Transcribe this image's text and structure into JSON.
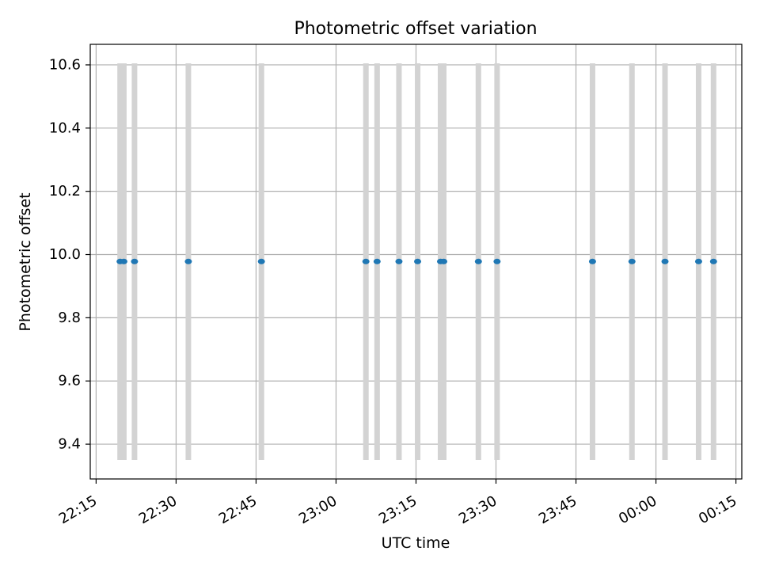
{
  "chart_data": {
    "type": "scatter",
    "title": "Photometric offset variation",
    "xlabel": "UTC time",
    "ylabel": "Photometric offset",
    "x_tick_labels": [
      "22:15",
      "22:30",
      "22:45",
      "23:00",
      "23:15",
      "23:30",
      "23:45",
      "00:00",
      "00:15"
    ],
    "x_tick_minutes": [
      0,
      15,
      30,
      45,
      60,
      75,
      90,
      105,
      120
    ],
    "xlim_minutes": [
      -1.1,
      121.1
    ],
    "y_ticks": [
      9.4,
      9.6,
      9.8,
      10.0,
      10.2,
      10.4,
      10.6
    ],
    "y_tick_labels": [
      "9.4",
      "9.6",
      "9.8",
      "10.0",
      "10.2",
      "10.4",
      "10.6"
    ],
    "ylim": [
      9.29,
      10.665
    ],
    "grid": true,
    "point_color": "#1f77b4",
    "errorbar_color": "#d3d3d3",
    "points": [
      {
        "t": 4.5,
        "y": 9.978,
        "err_low": 9.35,
        "err_high": 10.605
      },
      {
        "t": 5.2,
        "y": 9.978,
        "err_low": 9.35,
        "err_high": 10.605
      },
      {
        "t": 7.2,
        "y": 9.978,
        "err_low": 9.35,
        "err_high": 10.605
      },
      {
        "t": 17.3,
        "y": 9.978,
        "err_low": 9.35,
        "err_high": 10.605
      },
      {
        "t": 31.0,
        "y": 9.978,
        "err_low": 9.35,
        "err_high": 10.605
      },
      {
        "t": 50.6,
        "y": 9.978,
        "err_low": 9.35,
        "err_high": 10.605
      },
      {
        "t": 52.7,
        "y": 9.978,
        "err_low": 9.35,
        "err_high": 10.605
      },
      {
        "t": 56.8,
        "y": 9.978,
        "err_low": 9.35,
        "err_high": 10.605
      },
      {
        "t": 60.3,
        "y": 9.978,
        "err_low": 9.35,
        "err_high": 10.605
      },
      {
        "t": 64.6,
        "y": 9.978,
        "err_low": 9.35,
        "err_high": 10.605
      },
      {
        "t": 65.2,
        "y": 9.978,
        "err_low": 9.35,
        "err_high": 10.605
      },
      {
        "t": 71.7,
        "y": 9.978,
        "err_low": 9.35,
        "err_high": 10.605
      },
      {
        "t": 75.2,
        "y": 9.978,
        "err_low": 9.35,
        "err_high": 10.605
      },
      {
        "t": 93.1,
        "y": 9.978,
        "err_low": 9.35,
        "err_high": 10.605
      },
      {
        "t": 100.5,
        "y": 9.978,
        "err_low": 9.35,
        "err_high": 10.605
      },
      {
        "t": 106.7,
        "y": 9.978,
        "err_low": 9.35,
        "err_high": 10.605
      },
      {
        "t": 113.0,
        "y": 9.978,
        "err_low": 9.35,
        "err_high": 10.605
      },
      {
        "t": 115.8,
        "y": 9.978,
        "err_low": 9.35,
        "err_high": 10.605
      }
    ]
  }
}
